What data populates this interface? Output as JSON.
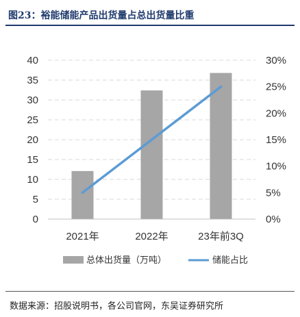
{
  "header": {
    "title": "图23：裕能储能产品出货量占总出货量比重"
  },
  "footer": {
    "source": "数据来源：招股说明书，各公司官网，东吴证券研究所"
  },
  "chart_data": {
    "type": "bar+line",
    "categories": [
      "2021年",
      "2022年",
      "23年前3Q"
    ],
    "series": [
      {
        "name": "总体出货量（万吨）",
        "type": "bar",
        "axis": "left",
        "values": [
          12.1,
          32.4,
          36.8
        ],
        "color": "#a6a6a6"
      },
      {
        "name": "储能占比",
        "type": "line",
        "axis": "right",
        "values": [
          5.0,
          15.0,
          25.0
        ],
        "unit": "%",
        "color": "#5b9bd5"
      }
    ],
    "y_left": {
      "min": 0,
      "max": 40,
      "ticks": [
        "0",
        "5",
        "10",
        "15",
        "20",
        "25",
        "30",
        "35",
        "40"
      ]
    },
    "y_right": {
      "min": 0,
      "max": 30,
      "ticks": [
        "0%",
        "5%",
        "10%",
        "15%",
        "20%",
        "25%",
        "30%"
      ]
    },
    "grid": true,
    "legend_position": "bottom"
  }
}
